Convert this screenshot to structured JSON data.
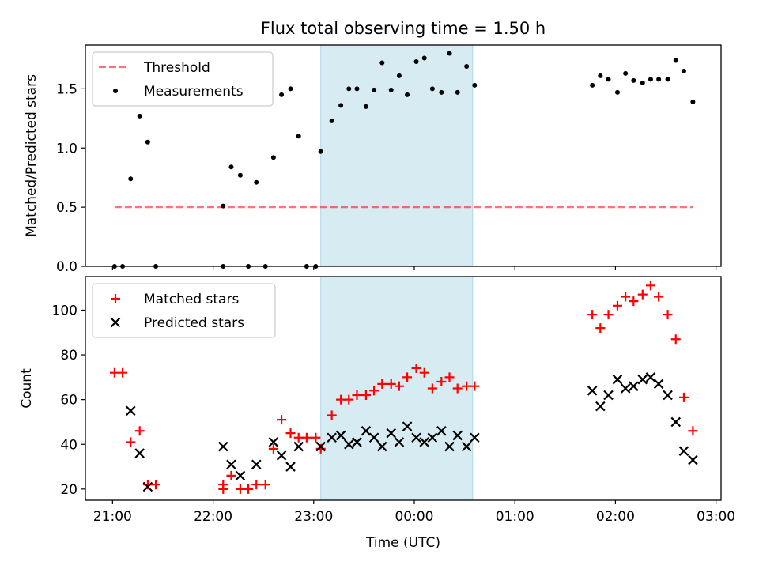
{
  "figure": {
    "title": "Flux total observing time = 1.50 h"
  },
  "chart_data": [
    {
      "type": "scatter",
      "ylabel": "Matched/Predicted stars",
      "xlabel": "",
      "ylim": [
        0,
        1.87
      ],
      "yticks": [
        0.0,
        0.5,
        1.0,
        1.5
      ],
      "ytick_labels": [
        "0.0",
        "0.5",
        "1.0",
        "1.5"
      ],
      "grid": false,
      "legend_position": "upper-left",
      "shaded_region": {
        "x_start": 23.07,
        "x_end": 24.58,
        "color": "#add8e6"
      },
      "threshold": {
        "name": "Threshold",
        "y": 0.5,
        "x_start": 21.02,
        "x_end": 26.77,
        "color": "#ff0000"
      },
      "series": [
        {
          "name": "Measurements",
          "marker": "dot",
          "color": "#000000",
          "points": [
            [
              21.02,
              0.0
            ],
            [
              21.1,
              0.0
            ],
            [
              21.18,
              0.74
            ],
            [
              21.27,
              1.27
            ],
            [
              21.35,
              1.05
            ],
            [
              21.43,
              0.0
            ],
            [
              22.1,
              0.51
            ],
            [
              22.1,
              0.0
            ],
            [
              22.18,
              0.84
            ],
            [
              22.27,
              0.77
            ],
            [
              22.35,
              0.0
            ],
            [
              22.43,
              0.71
            ],
            [
              22.52,
              0.0
            ],
            [
              22.6,
              0.92
            ],
            [
              22.68,
              1.45
            ],
            [
              22.77,
              1.5
            ],
            [
              22.85,
              1.1
            ],
            [
              22.93,
              0.0
            ],
            [
              23.02,
              0.0
            ],
            [
              23.07,
              0.97
            ],
            [
              23.18,
              1.23
            ],
            [
              23.27,
              1.36
            ],
            [
              23.35,
              1.5
            ],
            [
              23.43,
              1.5
            ],
            [
              23.52,
              1.35
            ],
            [
              23.6,
              1.49
            ],
            [
              23.68,
              1.72
            ],
            [
              23.77,
              1.49
            ],
            [
              23.85,
              1.61
            ],
            [
              23.93,
              1.45
            ],
            [
              24.02,
              1.73
            ],
            [
              24.1,
              1.76
            ],
            [
              24.18,
              1.5
            ],
            [
              24.27,
              1.47
            ],
            [
              24.35,
              1.8
            ],
            [
              24.43,
              1.47
            ],
            [
              24.52,
              1.69
            ],
            [
              24.6,
              1.53
            ],
            [
              25.77,
              1.53
            ],
            [
              25.85,
              1.61
            ],
            [
              25.93,
              1.58
            ],
            [
              26.02,
              1.47
            ],
            [
              26.1,
              1.63
            ],
            [
              26.18,
              1.57
            ],
            [
              26.27,
              1.55
            ],
            [
              26.35,
              1.58
            ],
            [
              26.43,
              1.58
            ],
            [
              26.52,
              1.58
            ],
            [
              26.6,
              1.74
            ],
            [
              26.68,
              1.65
            ],
            [
              26.77,
              1.39
            ]
          ]
        }
      ]
    },
    {
      "type": "scatter",
      "ylabel": "Count",
      "xlabel": "Time (UTC)",
      "ylim": [
        15,
        115
      ],
      "yticks": [
        20,
        40,
        60,
        80,
        100
      ],
      "ytick_labels": [
        "20",
        "40",
        "60",
        "80",
        "100"
      ],
      "xlim": [
        20.73,
        27.05
      ],
      "xticks": [
        21,
        22,
        23,
        24,
        25,
        26,
        27
      ],
      "xtick_labels": [
        "21:00",
        "22:00",
        "23:00",
        "00:00",
        "01:00",
        "02:00",
        "03:00"
      ],
      "grid": false,
      "legend_position": "upper-left",
      "shaded_region": {
        "x_start": 23.07,
        "x_end": 24.58,
        "color": "#add8e6"
      },
      "series": [
        {
          "name": "Matched stars",
          "marker": "plus",
          "color": "#ff0000",
          "points": [
            [
              21.02,
              72
            ],
            [
              21.1,
              72
            ],
            [
              21.18,
              41
            ],
            [
              21.27,
              46
            ],
            [
              21.35,
              22
            ],
            [
              21.43,
              22
            ],
            [
              22.1,
              20
            ],
            [
              22.1,
              22
            ],
            [
              22.18,
              26
            ],
            [
              22.27,
              20
            ],
            [
              22.35,
              20
            ],
            [
              22.43,
              22
            ],
            [
              22.52,
              22
            ],
            [
              22.6,
              38
            ],
            [
              22.68,
              51
            ],
            [
              22.77,
              45
            ],
            [
              22.85,
              43
            ],
            [
              22.93,
              43
            ],
            [
              23.02,
              43
            ],
            [
              23.07,
              38
            ],
            [
              23.18,
              53
            ],
            [
              23.27,
              60
            ],
            [
              23.35,
              60
            ],
            [
              23.43,
              62
            ],
            [
              23.52,
              62
            ],
            [
              23.6,
              64
            ],
            [
              23.68,
              67
            ],
            [
              23.77,
              67
            ],
            [
              23.85,
              66
            ],
            [
              23.93,
              70
            ],
            [
              24.02,
              74
            ],
            [
              24.1,
              72
            ],
            [
              24.18,
              65
            ],
            [
              24.27,
              68
            ],
            [
              24.35,
              70
            ],
            [
              24.43,
              65
            ],
            [
              24.52,
              66
            ],
            [
              24.6,
              66
            ],
            [
              25.77,
              98
            ],
            [
              25.85,
              92
            ],
            [
              25.93,
              98
            ],
            [
              26.02,
              102
            ],
            [
              26.1,
              106
            ],
            [
              26.18,
              104
            ],
            [
              26.27,
              107
            ],
            [
              26.35,
              111
            ],
            [
              26.43,
              106
            ],
            [
              26.52,
              98
            ],
            [
              26.6,
              87
            ],
            [
              26.68,
              61
            ],
            [
              26.77,
              46
            ]
          ]
        },
        {
          "name": "Predicted stars",
          "marker": "x",
          "color": "#000000",
          "points": [
            [
              21.18,
              55
            ],
            [
              21.27,
              36
            ],
            [
              21.35,
              21
            ],
            [
              22.1,
              39
            ],
            [
              22.18,
              31
            ],
            [
              22.27,
              26
            ],
            [
              22.43,
              31
            ],
            [
              22.6,
              41
            ],
            [
              22.68,
              35
            ],
            [
              22.77,
              30
            ],
            [
              22.85,
              39
            ],
            [
              23.07,
              39
            ],
            [
              23.18,
              43
            ],
            [
              23.27,
              44
            ],
            [
              23.35,
              40
            ],
            [
              23.43,
              41
            ],
            [
              23.52,
              46
            ],
            [
              23.6,
              43
            ],
            [
              23.68,
              39
            ],
            [
              23.77,
              45
            ],
            [
              23.85,
              41
            ],
            [
              23.93,
              48
            ],
            [
              24.02,
              43
            ],
            [
              24.1,
              41
            ],
            [
              24.18,
              43
            ],
            [
              24.27,
              46
            ],
            [
              24.35,
              39
            ],
            [
              24.43,
              44
            ],
            [
              24.52,
              39
            ],
            [
              24.6,
              43
            ],
            [
              25.77,
              64
            ],
            [
              25.85,
              57
            ],
            [
              25.93,
              62
            ],
            [
              26.02,
              69
            ],
            [
              26.1,
              65
            ],
            [
              26.18,
              66
            ],
            [
              26.27,
              69
            ],
            [
              26.35,
              70
            ],
            [
              26.43,
              67
            ],
            [
              26.52,
              62
            ],
            [
              26.6,
              50
            ],
            [
              26.68,
              37
            ],
            [
              26.77,
              33
            ]
          ]
        }
      ]
    }
  ]
}
